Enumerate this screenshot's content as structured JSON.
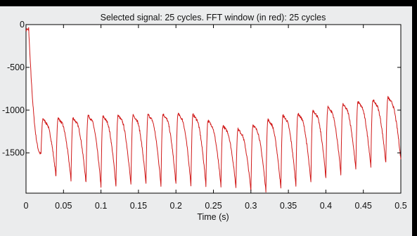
{
  "chart_data": {
    "type": "line",
    "title": "Selected signal: 25 cycles. FFT window (in red): 25 cycles",
    "xlabel": "Time (s)",
    "ylabel": "",
    "xlim": [
      0,
      0.5
    ],
    "ylim": [
      -1970,
      0
    ],
    "x_ticks": [
      "0",
      "0.05",
      "0.1",
      "0.15",
      "0.2",
      "0.25",
      "0.3",
      "0.35",
      "0.4",
      "0.45",
      "0.5"
    ],
    "y_ticks": [
      "0",
      "-500",
      "-1000",
      "-1500"
    ],
    "grid": false,
    "series": [
      {
        "color": "#d01818",
        "cycles": 25,
        "start_value": -60,
        "cycle_peaks": [
          -800,
          -1100,
          -1090,
          -1090,
          -1060,
          -1070,
          -1060,
          -1055,
          -1050,
          -1045,
          -1040,
          -1050,
          -1120,
          -1180,
          -1220,
          -1170,
          -1110,
          -1060,
          -1040,
          -1000,
          -960,
          -930,
          -900,
          -880,
          -850,
          -830
        ],
        "cycle_troughs": [
          -1510,
          -1780,
          -1820,
          -1850,
          -1890,
          -1890,
          -1880,
          -1870,
          -1880,
          -1870,
          -1875,
          -1880,
          -1890,
          -1900,
          -1940,
          -1950,
          -1920,
          -1880,
          -1850,
          -1790,
          -1750,
          -1700,
          -1660,
          -1620,
          -1580,
          -1550
        ]
      }
    ]
  },
  "colors": {
    "background": "#ebeced",
    "plot_area": "#ffffff",
    "signal": "#d01818",
    "axes": "#000000"
  }
}
